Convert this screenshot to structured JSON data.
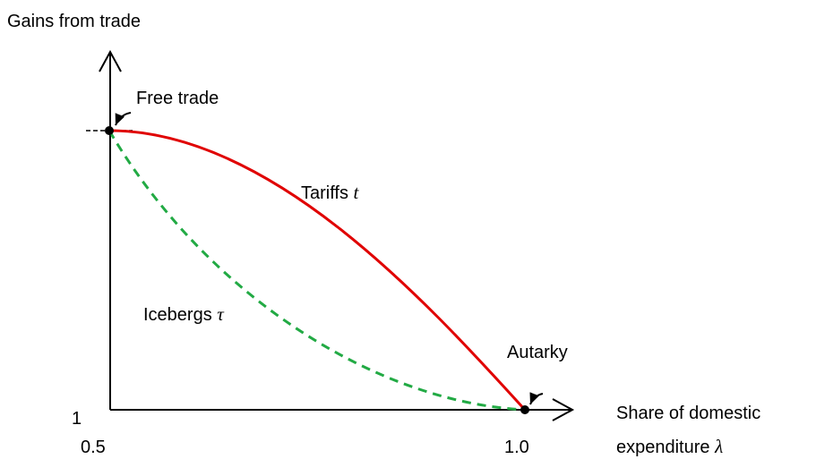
{
  "diagram": {
    "y_axis_label": "Gains from trade",
    "free_trade": "Free trade",
    "tariffs": {
      "text": "Tariffs",
      "symbol": "t"
    },
    "icebergs": {
      "text": "Icebergs",
      "symbol": "τ"
    },
    "autarky": "Autarky",
    "y_origin_label": "1",
    "x_start_label": "0.5",
    "x_end_label": "1.0",
    "x_axis_label": {
      "line1": "Share of domestic",
      "line2": "expenditure",
      "symbol": "λ"
    }
  }
}
